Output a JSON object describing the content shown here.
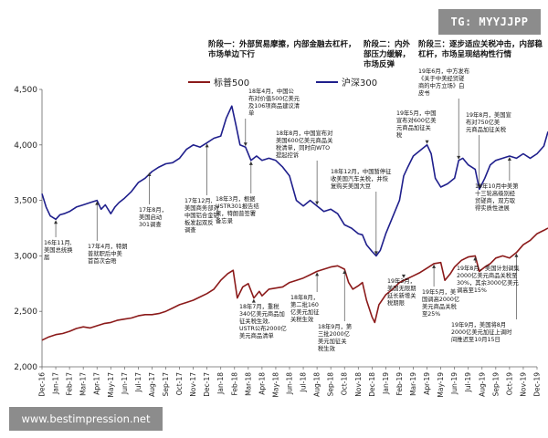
{
  "watermark_top": "TG: MYYJJPP",
  "watermark_bottom": "www.bestimpression.net",
  "phases": [
    {
      "lines": [
        "阶段一：外部贸易摩擦，内部金融去杠杆，",
        "市场单边下行"
      ]
    },
    {
      "lines": [
        "阶段二：内外",
        "部压力缓解，",
        "市场反弹"
      ]
    },
    {
      "lines": [
        "阶段三：逐步适应关税冲击，内部稳",
        "杠杆，市场呈现结构性行情"
      ]
    }
  ],
  "chart_data": {
    "type": "line",
    "title": "",
    "xlabel": "",
    "ylabel": "",
    "ylim": [
      2000,
      4500
    ],
    "yticks": [
      "2,000",
      "2,500",
      "3,000",
      "3,500",
      "4,000",
      "4,500"
    ],
    "ytick_values": [
      2000,
      2500,
      3000,
      3500,
      4000,
      4500
    ],
    "xticks": [
      "Dec-16",
      "Jan-17",
      "Feb-17",
      "Mar-17",
      "Apr-17",
      "May-17",
      "Jun-17",
      "Jul-17",
      "Aug-17",
      "Sep-17",
      "Oct-17",
      "Nov-17",
      "Dec-17",
      "Jan-18",
      "Feb-18",
      "Mar-18",
      "Apr-18",
      "May-18",
      "Jun-18",
      "Jul-18",
      "Aug-18",
      "Sep-18",
      "Oct-18",
      "Nov-18",
      "Dec-18",
      "Jan-19",
      "Feb-19",
      "Mar-19",
      "Apr-19",
      "May-19",
      "Jun-19",
      "Jul-19",
      "Aug-19",
      "Sep-19",
      "Oct-19",
      "Nov-19",
      "Dec-19"
    ],
    "legend": "top",
    "series": [
      {
        "name": "标普500",
        "color": "#8b1a1a",
        "points": [
          [
            0,
            2240
          ],
          [
            0.5,
            2270
          ],
          [
            1,
            2290
          ],
          [
            1.5,
            2300
          ],
          [
            2,
            2320
          ],
          [
            2.5,
            2345
          ],
          [
            3,
            2360
          ],
          [
            3.5,
            2350
          ],
          [
            4,
            2370
          ],
          [
            4.5,
            2390
          ],
          [
            5,
            2400
          ],
          [
            5.5,
            2420
          ],
          [
            6,
            2430
          ],
          [
            6.5,
            2440
          ],
          [
            7,
            2460
          ],
          [
            7.5,
            2470
          ],
          [
            8,
            2470
          ],
          [
            8.5,
            2480
          ],
          [
            9,
            2500
          ],
          [
            9.5,
            2530
          ],
          [
            10,
            2560
          ],
          [
            10.5,
            2580
          ],
          [
            11,
            2600
          ],
          [
            11.5,
            2630
          ],
          [
            12,
            2660
          ],
          [
            12.5,
            2700
          ],
          [
            13,
            2780
          ],
          [
            13.5,
            2840
          ],
          [
            13.9,
            2870
          ],
          [
            14.2,
            2620
          ],
          [
            14.6,
            2720
          ],
          [
            15,
            2750
          ],
          [
            15.4,
            2620
          ],
          [
            15.8,
            2680
          ],
          [
            16,
            2640
          ],
          [
            16.5,
            2700
          ],
          [
            17,
            2710
          ],
          [
            17.5,
            2720
          ],
          [
            18,
            2760
          ],
          [
            18.5,
            2780
          ],
          [
            19,
            2800
          ],
          [
            19.5,
            2830
          ],
          [
            20,
            2860
          ],
          [
            20.5,
            2880
          ],
          [
            21,
            2900
          ],
          [
            21.5,
            2910
          ],
          [
            22,
            2880
          ],
          [
            22.3,
            2760
          ],
          [
            22.6,
            2700
          ],
          [
            23,
            2730
          ],
          [
            23.3,
            2760
          ],
          [
            23.6,
            2600
          ],
          [
            24,
            2450
          ],
          [
            24.2,
            2400
          ],
          [
            24.5,
            2560
          ],
          [
            25,
            2650
          ],
          [
            25.5,
            2700
          ],
          [
            26,
            2760
          ],
          [
            26.5,
            2790
          ],
          [
            27,
            2820
          ],
          [
            27.5,
            2850
          ],
          [
            28,
            2890
          ],
          [
            28.5,
            2930
          ],
          [
            29,
            2940
          ],
          [
            29.3,
            2780
          ],
          [
            29.7,
            2840
          ],
          [
            30,
            2900
          ],
          [
            30.5,
            2960
          ],
          [
            31,
            2990
          ],
          [
            31.5,
            3000
          ],
          [
            31.8,
            2860
          ],
          [
            32.2,
            2900
          ],
          [
            32.6,
            2930
          ],
          [
            33,
            2980
          ],
          [
            33.5,
            3000
          ],
          [
            34,
            2980
          ],
          [
            34.5,
            3030
          ],
          [
            35,
            3100
          ],
          [
            35.5,
            3140
          ],
          [
            36,
            3200
          ],
          [
            36.5,
            3230
          ],
          [
            36.8,
            3250
          ]
        ]
      },
      {
        "name": "沪深300",
        "color": "#1f1f8c",
        "points": [
          [
            0,
            3560
          ],
          [
            0.3,
            3440
          ],
          [
            0.6,
            3360
          ],
          [
            1,
            3330
          ],
          [
            1.3,
            3370
          ],
          [
            1.6,
            3380
          ],
          [
            2,
            3400
          ],
          [
            2.5,
            3440
          ],
          [
            3,
            3460
          ],
          [
            3.5,
            3480
          ],
          [
            4,
            3500
          ],
          [
            4.3,
            3420
          ],
          [
            4.6,
            3460
          ],
          [
            5,
            3380
          ],
          [
            5.3,
            3440
          ],
          [
            5.6,
            3480
          ],
          [
            6,
            3520
          ],
          [
            6.5,
            3580
          ],
          [
            7,
            3660
          ],
          [
            7.5,
            3700
          ],
          [
            8,
            3760
          ],
          [
            8.5,
            3800
          ],
          [
            9,
            3830
          ],
          [
            9.5,
            3840
          ],
          [
            10,
            3880
          ],
          [
            10.5,
            3960
          ],
          [
            11,
            4000
          ],
          [
            11.5,
            3980
          ],
          [
            12,
            4020
          ],
          [
            12.5,
            4060
          ],
          [
            13,
            4080
          ],
          [
            13.4,
            4240
          ],
          [
            13.8,
            4350
          ],
          [
            14.1,
            4180
          ],
          [
            14.4,
            4000
          ],
          [
            14.8,
            3980
          ],
          [
            15.2,
            3860
          ],
          [
            15.6,
            3900
          ],
          [
            16,
            3860
          ],
          [
            16.5,
            3880
          ],
          [
            17,
            3860
          ],
          [
            17.5,
            3800
          ],
          [
            18,
            3720
          ],
          [
            18.5,
            3500
          ],
          [
            19,
            3450
          ],
          [
            19.5,
            3500
          ],
          [
            20,
            3450
          ],
          [
            20.5,
            3400
          ],
          [
            21,
            3420
          ],
          [
            21.5,
            3380
          ],
          [
            22,
            3280
          ],
          [
            22.5,
            3250
          ],
          [
            23,
            3200
          ],
          [
            23.3,
            3190
          ],
          [
            23.6,
            3100
          ],
          [
            24,
            3040
          ],
          [
            24.3,
            3000
          ],
          [
            24.6,
            3050
          ],
          [
            25,
            3200
          ],
          [
            25.5,
            3350
          ],
          [
            26,
            3500
          ],
          [
            26.3,
            3720
          ],
          [
            26.6,
            3800
          ],
          [
            27,
            3900
          ],
          [
            27.5,
            3950
          ],
          [
            28,
            4000
          ],
          [
            28.3,
            3920
          ],
          [
            28.6,
            3700
          ],
          [
            29,
            3620
          ],
          [
            29.5,
            3650
          ],
          [
            30,
            3700
          ],
          [
            30.3,
            3860
          ],
          [
            30.6,
            3880
          ],
          [
            31,
            3820
          ],
          [
            31.5,
            3780
          ],
          [
            31.8,
            3600
          ],
          [
            32.2,
            3700
          ],
          [
            32.6,
            3820
          ],
          [
            33,
            3860
          ],
          [
            33.5,
            3880
          ],
          [
            34,
            3900
          ],
          [
            34.5,
            3880
          ],
          [
            35,
            3920
          ],
          [
            35.5,
            3880
          ],
          [
            36,
            3920
          ],
          [
            36.5,
            3990
          ],
          [
            36.8,
            4120
          ]
        ]
      }
    ],
    "annotations": [
      {
        "lines": [
          "16年11月,",
          "美国总统换",
          "届"
        ]
      },
      {
        "lines": [
          "17年4月，特朗",
          "普就职后中美",
          "首首次会晤"
        ]
      },
      {
        "lines": [
          "17年8月，",
          "美国启动",
          "301调查"
        ]
      },
      {
        "lines": [
          "17年12月,",
          "美国商务部对",
          "中国铝合金铝",
          "板发起双反",
          "调查"
        ]
      },
      {
        "lines": [
          "18年3月，根据",
          "USTR301报告结",
          "果，特朗普签署",
          "备忘录"
        ]
      },
      {
        "lines": [
          "18年4月，中国公",
          "布对价值500亿美元",
          "及106项商品建议清",
          "单"
        ]
      },
      {
        "lines": [
          "18年7月，重税",
          "340亿美元商品加",
          "征关税生效,",
          "USTR公布2000亿",
          "美元商品清单"
        ]
      },
      {
        "lines": [
          "18年8月，",
          "第二批160",
          "亿美元加征",
          "关税生效"
        ]
      },
      {
        "lines": [
          "18年8月，中国宣布对",
          "美国600亿美元商品关",
          "税清单，同时向WTO",
          "提起控诉"
        ]
      },
      {
        "lines": [
          "18年9月，第",
          "三批2000亿",
          "美元加征关",
          "税生效"
        ]
      },
      {
        "lines": [
          "18年12月，中国暂停征",
          "收美国汽车关税，并恢",
          "复购买美国大豆"
        ]
      },
      {
        "lines": [
          "19年3月，",
          "美国无限期",
          "延长新增关",
          "税期限"
        ]
      },
      {
        "lines": [
          "19年5月，中国",
          "宣布对600亿美",
          "元商品加征关",
          "税"
        ]
      },
      {
        "lines": [
          "19年5月，美",
          "国调高2000亿",
          "美元商品关税",
          "至25%"
        ]
      },
      {
        "lines": [
          "19年6月，中方发布",
          "《关于中美经贸磋",
          "商的中方立场》白",
          "皮书"
        ]
      },
      {
        "lines": [
          "19年8月，美国宣",
          "布对750亿美",
          "元商品加征关税"
        ]
      },
      {
        "lines": [
          "19年8月，美国计划调集",
          "2000亿美元商品关税至",
          "30%，其余3000亿美元",
          "调高至15%"
        ]
      },
      {
        "lines": [
          "19年10月中美第",
          "十三轮高级别经",
          "贸磋商，双方取",
          "得实质性进展"
        ]
      },
      {
        "lines": [
          "19年9月，美国将8月",
          "2000亿美元加征上调时",
          "间推迟至10月15日"
        ]
      }
    ]
  }
}
